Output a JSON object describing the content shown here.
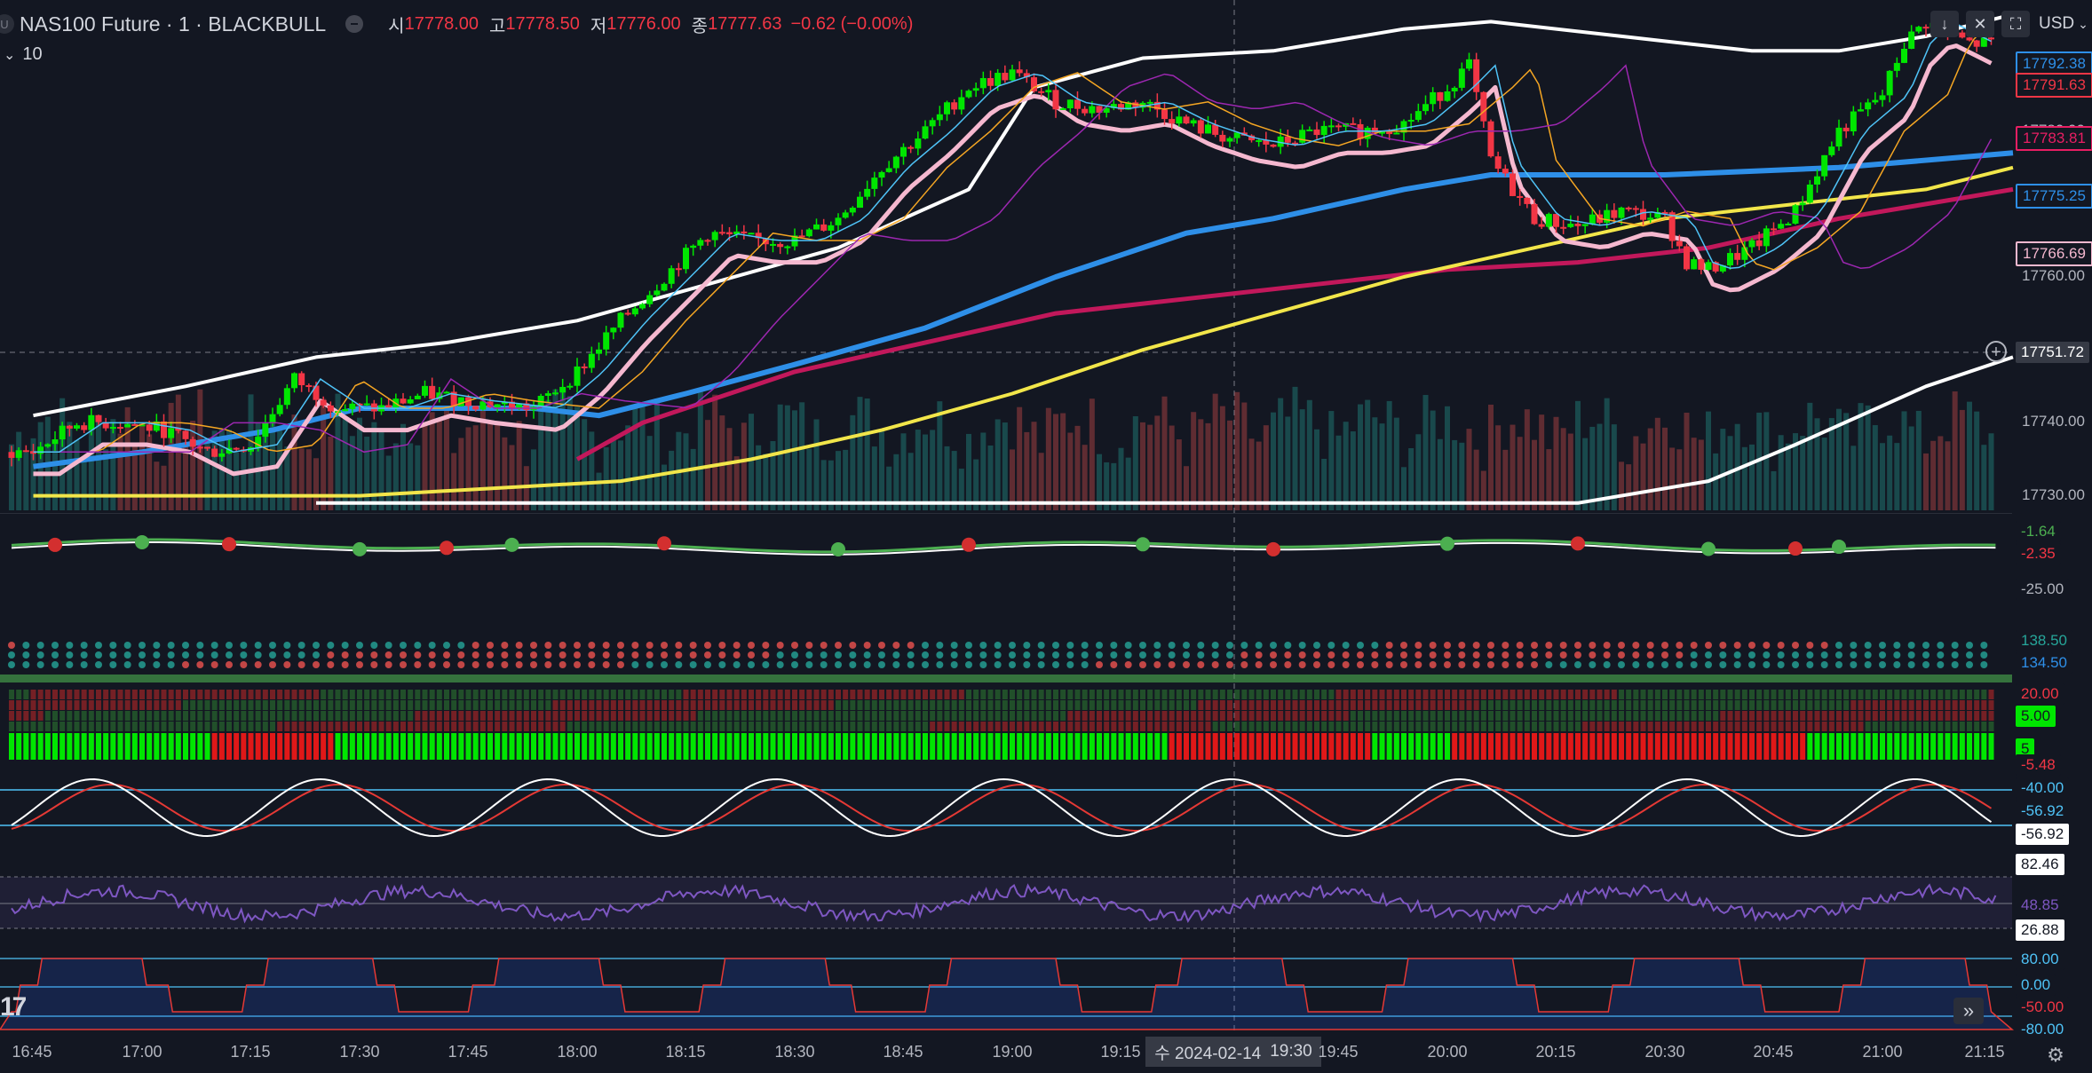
{
  "header": {
    "symbol": "NAS100 Future · 1 · BLACKBULL",
    "logo": "U",
    "open_label": "시",
    "open": "17778.00",
    "high_label": "고",
    "high": "17778.50",
    "low_label": "저",
    "low": "17776.00",
    "close_label": "종",
    "close": "17777.63",
    "change": "−0.62 (−0.00%)",
    "indicator_count": "10",
    "currency": "USD"
  },
  "colors": {
    "background": "#131722",
    "up": "#00e600",
    "down": "#f23645",
    "pink": "#f5b8cf",
    "blue": "#2e8fe8",
    "crimson": "#c2185b",
    "yellow": "#f2e64a",
    "white": "#ffffff"
  },
  "chart_data": {
    "type": "candlestick",
    "x_axis": {
      "ticks": [
        "16:45",
        "17:00",
        "17:15",
        "17:30",
        "17:45",
        "18:00",
        "18:15",
        "18:30",
        "18:45",
        "19:00",
        "19:15",
        "19:45",
        "20:00",
        "20:15",
        "20:30",
        "20:45",
        "21:00",
        "21:15"
      ],
      "crosshair_date": "수 2024-02-14",
      "crosshair_time": "19:30"
    },
    "price_axis": {
      "ticks": [
        "17790.00",
        "17780.00",
        "17770.00",
        "17760.00",
        "17740.00",
        "17730.00"
      ],
      "range": [
        17728,
        17797
      ],
      "crosshair_price": "17751.72"
    },
    "close_path": [
      [
        16.75,
        17736
      ],
      [
        16.85,
        17740
      ],
      [
        16.95,
        17740
      ],
      [
        17.05,
        17739
      ],
      [
        17.15,
        17736
      ],
      [
        17.25,
        17737
      ],
      [
        17.35,
        17746
      ],
      [
        17.45,
        17742
      ],
      [
        17.55,
        17742
      ],
      [
        17.65,
        17744
      ],
      [
        17.75,
        17743
      ],
      [
        17.9,
        17742
      ],
      [
        18.0,
        17747
      ],
      [
        18.1,
        17754
      ],
      [
        18.2,
        17760
      ],
      [
        18.3,
        17766
      ],
      [
        18.4,
        17765
      ],
      [
        18.5,
        17765
      ],
      [
        18.6,
        17768
      ],
      [
        18.7,
        17775
      ],
      [
        18.8,
        17780
      ],
      [
        18.9,
        17786
      ],
      [
        19.0,
        17788
      ],
      [
        19.1,
        17784
      ],
      [
        19.2,
        17783
      ],
      [
        19.3,
        17784
      ],
      [
        19.4,
        17781
      ],
      [
        19.5,
        17779
      ],
      [
        19.6,
        17778
      ],
      [
        19.7,
        17780
      ],
      [
        19.8,
        17780
      ],
      [
        19.9,
        17781
      ],
      [
        20.0,
        17786
      ],
      [
        20.05,
        17789
      ],
      [
        20.1,
        17776
      ],
      [
        20.2,
        17768
      ],
      [
        20.3,
        17767
      ],
      [
        20.4,
        17769
      ],
      [
        20.5,
        17768
      ],
      [
        20.55,
        17762
      ],
      [
        20.6,
        17761
      ],
      [
        20.7,
        17764
      ],
      [
        20.8,
        17769
      ],
      [
        20.9,
        17780
      ],
      [
        21.0,
        17785
      ],
      [
        21.05,
        17792
      ],
      [
        21.1,
        17795
      ],
      [
        21.2,
        17792
      ]
    ],
    "series": [
      {
        "values": [
          [
            16.75,
            17741
          ],
          [
            17.1,
            17745
          ],
          [
            17.4,
            17749
          ],
          [
            17.7,
            17751
          ],
          [
            18.0,
            17754
          ],
          [
            18.3,
            17759
          ],
          [
            18.6,
            17764
          ],
          [
            18.9,
            17772
          ],
          [
            19.05,
            17786
          ],
          [
            19.3,
            17790
          ],
          [
            19.6,
            17791
          ],
          [
            19.9,
            17794
          ],
          [
            20.1,
            17795
          ],
          [
            20.4,
            17793
          ],
          [
            20.7,
            17791
          ],
          [
            20.9,
            17791
          ],
          [
            21.1,
            17793
          ],
          [
            21.3,
            17796
          ]
        ]
      },
      {
        "values": [
          [
            17.4,
            17729
          ],
          [
            17.9,
            17729
          ],
          [
            18.5,
            17729
          ],
          [
            19.5,
            17729
          ],
          [
            20.3,
            17729
          ],
          [
            20.6,
            17732
          ],
          [
            20.8,
            17737
          ],
          [
            20.95,
            17741
          ],
          [
            21.1,
            17745
          ],
          [
            21.3,
            17749
          ]
        ]
      },
      {
        "values": [
          [
            16.75,
            17734
          ],
          [
            17.0,
            17736
          ],
          [
            17.3,
            17739
          ],
          [
            17.5,
            17742
          ],
          [
            17.9,
            17742
          ],
          [
            18.05,
            17741
          ],
          [
            18.25,
            17744
          ],
          [
            18.5,
            17748
          ],
          [
            18.8,
            17753
          ],
          [
            19.1,
            17760
          ],
          [
            19.4,
            17766
          ],
          [
            19.6,
            17768
          ],
          [
            19.9,
            17772
          ],
          [
            20.1,
            17774
          ],
          [
            20.5,
            17774
          ],
          [
            20.9,
            17775
          ],
          [
            21.3,
            17777
          ]
        ]
      },
      {
        "values": [
          [
            18.0,
            17735
          ],
          [
            18.15,
            17740
          ],
          [
            18.5,
            17747
          ],
          [
            18.8,
            17751
          ],
          [
            19.1,
            17755
          ],
          [
            19.4,
            17757
          ],
          [
            19.7,
            17759
          ],
          [
            20.0,
            17761
          ],
          [
            20.3,
            17762
          ],
          [
            20.6,
            17764
          ],
          [
            20.9,
            17768
          ],
          [
            21.2,
            17771
          ],
          [
            21.3,
            17772
          ]
        ]
      },
      {
        "values": [
          [
            16.75,
            17730
          ],
          [
            17.5,
            17730
          ],
          [
            18.1,
            17732
          ],
          [
            18.4,
            17735
          ],
          [
            18.7,
            17739
          ],
          [
            19.0,
            17744
          ],
          [
            19.3,
            17750
          ],
          [
            19.6,
            17755
          ],
          [
            19.9,
            17760
          ],
          [
            20.2,
            17764
          ],
          [
            20.5,
            17768
          ],
          [
            20.8,
            17770
          ],
          [
            21.1,
            17772
          ],
          [
            21.3,
            17775
          ]
        ]
      }
    ],
    "oscillator_1": {
      "labels": [
        "-1.64",
        "-2.35",
        "-25.00"
      ]
    },
    "oscillator_2": {
      "labels": [
        "138.50",
        "134.50"
      ]
    },
    "heatmap": {
      "labels": [
        "20.00",
        "5.00",
        "5"
      ]
    },
    "stochastic": {
      "labels": [
        "-40.00",
        "-56.92",
        "-56.92",
        "-5.48"
      ]
    },
    "rsi": {
      "labels": [
        "82.46",
        "48.85",
        "26.88"
      ]
    },
    "cci": {
      "labels": [
        "80.00",
        "0.00",
        "-50.00",
        "-80.00"
      ]
    },
    "price_labels": [
      "17792.38",
      "17791.63",
      "17783.81",
      "17775.25",
      "17766.69"
    ]
  }
}
